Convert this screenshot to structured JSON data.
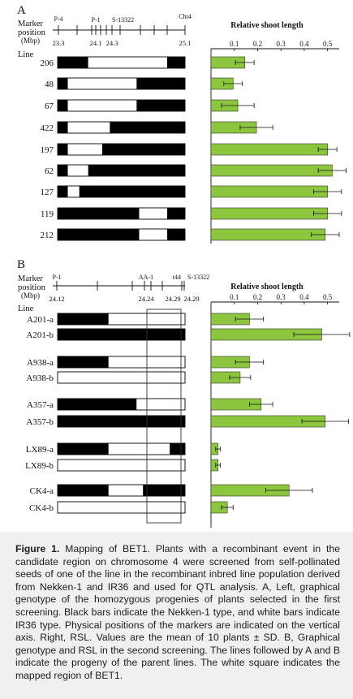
{
  "panelA": {
    "letter": "A",
    "marker_heading": "Marker",
    "position_heading": "position",
    "mbp_heading": "(Mbp)",
    "line_heading": "Line",
    "markers": [
      {
        "name": "P-4",
        "pos": "23.3"
      },
      {
        "name": "P-1",
        "pos": "24.1"
      },
      {
        "name": "S-13322",
        "pos": "24.3"
      },
      {
        "name": "Cht4",
        "pos": "25.1"
      }
    ],
    "lines": [
      {
        "label": "206",
        "segments": [
          [
            "b",
            0.24
          ],
          [
            "w",
            0.86
          ],
          [
            "b",
            1.0
          ]
        ],
        "rsl": 0.145,
        "sd": 0.04
      },
      {
        "label": "48",
        "segments": [
          [
            "b",
            0.08
          ],
          [
            "w",
            0.62
          ],
          [
            "b",
            1.0
          ]
        ],
        "rsl": 0.095,
        "sd": 0.04
      },
      {
        "label": "67",
        "segments": [
          [
            "b",
            0.08
          ],
          [
            "w",
            0.62
          ],
          [
            "b",
            1.0
          ]
        ],
        "rsl": 0.115,
        "sd": 0.07
      },
      {
        "label": "422",
        "segments": [
          [
            "b",
            0.08
          ],
          [
            "w",
            0.41
          ],
          [
            "b",
            1.0
          ]
        ],
        "rsl": 0.195,
        "sd": 0.07
      },
      {
        "label": "197",
        "segments": [
          [
            "b",
            0.08
          ],
          [
            "w",
            0.35
          ],
          [
            "b",
            1.0
          ]
        ],
        "rsl": 0.5,
        "sd": 0.04
      },
      {
        "label": "62",
        "segments": [
          [
            "b",
            0.08
          ],
          [
            "w",
            0.24
          ],
          [
            "b",
            1.0
          ]
        ],
        "rsl": 0.52,
        "sd": 0.06
      },
      {
        "label": "127",
        "segments": [
          [
            "b",
            0.08
          ],
          [
            "w",
            0.17
          ],
          [
            "b",
            1.0
          ]
        ],
        "rsl": 0.5,
        "sd": 0.06
      },
      {
        "label": "119",
        "segments": [
          [
            "b",
            0.64
          ],
          [
            "w",
            0.86
          ],
          [
            "b",
            1.0
          ]
        ],
        "rsl": 0.5,
        "sd": 0.06
      },
      {
        "label": "212",
        "segments": [
          [
            "b",
            0.64
          ],
          [
            "w",
            0.86
          ],
          [
            "b",
            1.0
          ]
        ],
        "rsl": 0.49,
        "sd": 0.06
      }
    ],
    "axis_title": "Relative shoot length",
    "ticks": [
      "0.1",
      "0.2",
      "0.3",
      "0.4",
      "0.5"
    ]
  },
  "panelB": {
    "letter": "B",
    "marker_heading": "Marker",
    "position_heading": "position",
    "mbp_heading": "(Mbp)",
    "line_heading": "Line",
    "markers": [
      {
        "name": "P-1",
        "pos": "24.12"
      },
      {
        "name": "AA-1",
        "pos": "24.24"
      },
      {
        "name": "t44",
        "pos": "24.29"
      },
      {
        "name": "S-13322",
        "pos": "24.29"
      }
    ],
    "groups": [
      [
        {
          "label": "A201-a",
          "segments": [
            [
              "b",
              0.4
            ],
            [
              "w",
              1.0
            ]
          ],
          "rsl": 0.165,
          "sd": 0.06
        },
        {
          "label": "A201-b",
          "segments": [
            [
              "b",
              1.0
            ]
          ],
          "rsl": 0.475,
          "sd": 0.12
        }
      ],
      [
        {
          "label": "A938-a",
          "segments": [
            [
              "b",
              0.4
            ],
            [
              "w",
              1.0
            ]
          ],
          "rsl": 0.165,
          "sd": 0.06
        },
        {
          "label": "A938-b",
          "segments": [
            [
              "w",
              1.0
            ]
          ],
          "rsl": 0.125,
          "sd": 0.045
        }
      ],
      [
        {
          "label": "A357-a",
          "segments": [
            [
              "b",
              0.62
            ],
            [
              "w",
              1.0
            ]
          ],
          "rsl": 0.215,
          "sd": 0.05
        },
        {
          "label": "A357-b",
          "segments": [
            [
              "b",
              1.0
            ]
          ],
          "rsl": 0.49,
          "sd": 0.1
        }
      ],
      [
        {
          "label": "LX89-a",
          "segments": [
            [
              "b",
              0.4
            ],
            [
              "w",
              0.88
            ],
            [
              "b",
              1.0
            ]
          ],
          "rsl": 0.03,
          "sd": 0.01
        },
        {
          "label": "LX89-b",
          "segments": [
            [
              "w",
              1.0
            ]
          ],
          "rsl": 0.03,
          "sd": 0.01
        }
      ],
      [
        {
          "label": "CK4-a",
          "segments": [
            [
              "b",
              0.4
            ],
            [
              "w",
              0.67
            ],
            [
              "b",
              1.0
            ]
          ],
          "rsl": 0.335,
          "sd": 0.1
        },
        {
          "label": "CK4-b",
          "segments": [
            [
              "w",
              1.0
            ]
          ],
          "rsl": 0.07,
          "sd": 0.025
        }
      ]
    ],
    "axis_title": "Relative shoot length",
    "ticks": [
      "0.1",
      "0.2",
      "0.3",
      "0.4",
      "0.5"
    ]
  },
  "colors": {
    "bar_fill": "#8cc63f",
    "genotype_black": "#000000",
    "genotype_white": "#ffffff"
  },
  "caption": {
    "label": "Figure 1.",
    "text": " Mapping of BET1. Plants with a recombinant event in the candidate region on chromosome 4 were screened from self-pollinated seeds of one of the line in the recombinant inbred line population derived from Nekken-1 and IR36 and used for QTL analysis. A, Left, graphical genotype of the homozygous progenies of plants selected in the first screening. Black bars indicate the Nekken-1 type, and white bars indicate IR36 type. Physical positions of the markers are indicated on the vertical axis. Right, RSL. Values are the mean of 10 plants ± SD. B, Graphical genotype and RSL in the second screening. The lines followed by A and B indicate the progeny of the parent lines. The white square indicates the mapped region of BET1."
  }
}
